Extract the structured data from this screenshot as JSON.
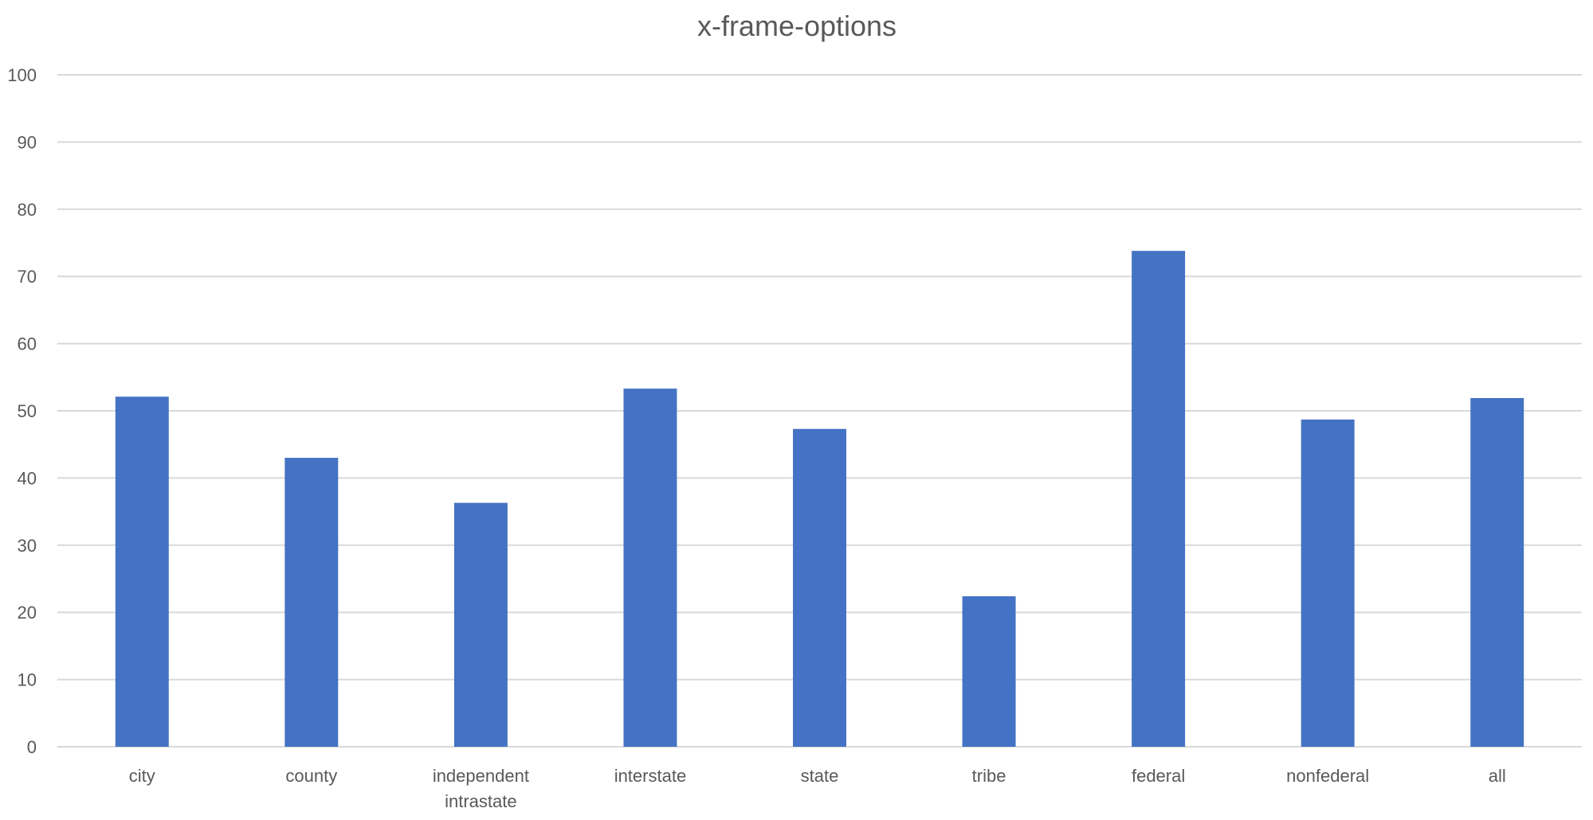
{
  "chart_data": {
    "type": "bar",
    "title": "x-frame-options",
    "xlabel": "",
    "ylabel": "",
    "categories": [
      [
        "city"
      ],
      [
        "county"
      ],
      [
        "independent",
        "intrastate"
      ],
      [
        "interstate"
      ],
      [
        "state"
      ],
      [
        "tribe"
      ],
      [
        "federal"
      ],
      [
        "nonfederal"
      ],
      [
        "all"
      ]
    ],
    "values": [
      52.1,
      43.0,
      36.3,
      53.3,
      47.3,
      22.4,
      73.8,
      48.7,
      51.9
    ],
    "ylim": [
      0,
      100
    ],
    "yticks": [
      0,
      10,
      20,
      30,
      40,
      50,
      60,
      70,
      80,
      90,
      100
    ],
    "grid": true,
    "legend": "none",
    "bar_color": "#4472C4"
  }
}
